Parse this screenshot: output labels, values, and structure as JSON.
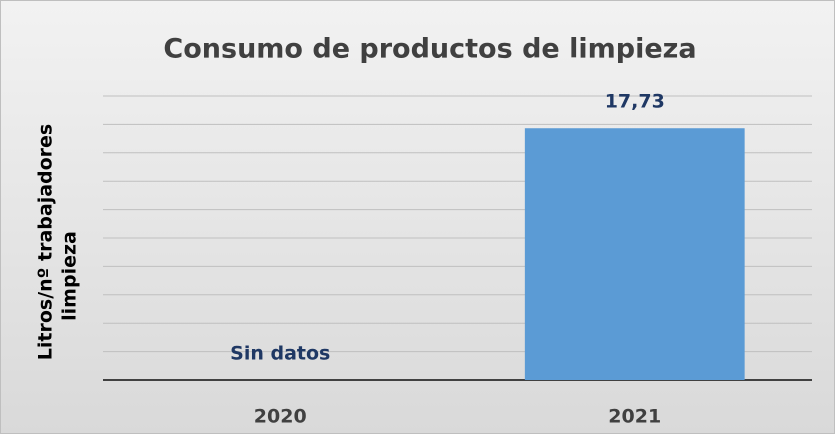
{
  "chart_data": {
    "type": "bar",
    "title": "Consumo de productos de limpieza",
    "ylabel": [
      "Litros/nº trabajadores",
      "limpieza"
    ],
    "categories": [
      "2020",
      "2021"
    ],
    "values": [
      null,
      17.73
    ],
    "value_labels": [
      "Sin datos",
      "17,73"
    ],
    "color": "#5b9bd5",
    "ylim": [
      0,
      20
    ],
    "yticks": [
      0,
      2,
      4,
      6,
      8,
      10,
      12,
      14,
      16,
      18,
      20
    ],
    "grid": true
  }
}
